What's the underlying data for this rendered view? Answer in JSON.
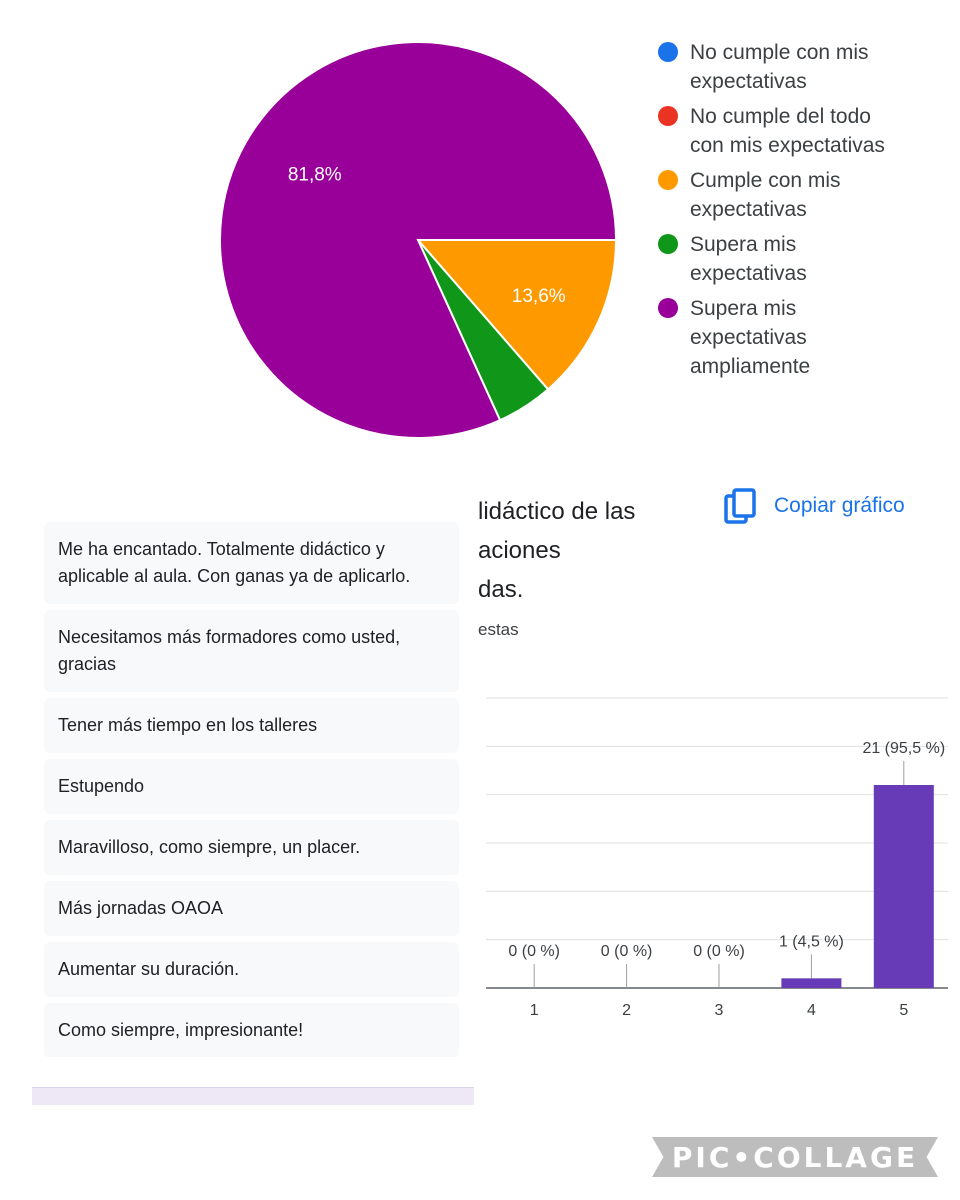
{
  "chart_data": [
    {
      "type": "pie",
      "title": "",
      "slices": [
        {
          "label": "No cumple con mis expectativas",
          "value": 0,
          "color": "#1a73e8"
        },
        {
          "label": "No cumple del todo con mis expectativas",
          "value": 0,
          "color": "#ea3323"
        },
        {
          "label": "Cumple con mis expectativas",
          "value": 13.6,
          "color": "#ff9900",
          "data_label": "13,6%"
        },
        {
          "label": "Supera mis expectativas",
          "value": 4.6,
          "color": "#109618"
        },
        {
          "label": "Supera mis expectativas ampliamente",
          "value": 81.8,
          "color": "#990099",
          "data_label": "81,8%"
        }
      ],
      "legend_position": "right"
    },
    {
      "type": "bar",
      "title": "",
      "categories": [
        "1",
        "2",
        "3",
        "4",
        "5"
      ],
      "values": [
        0,
        0,
        0,
        1,
        21
      ],
      "data_labels": [
        "0 (0 %)",
        "0 (0 %)",
        "0 (0 %)",
        "1 (4,5 %)",
        "21 (95,5 %)"
      ],
      "ylim": [
        0,
        30
      ],
      "grid": true,
      "bar_color": "#673ab7"
    }
  ],
  "question": {
    "title_lines": [
      "lidáctico de las",
      "aciones",
      "das."
    ],
    "responses_text": "estas"
  },
  "copy_chart": {
    "label": "Copiar gráfico",
    "icon": "copy-icon",
    "color": "#1a73e8"
  },
  "comments": [
    "Me ha encantado. Totalmente didáctico y aplicable al aula. Con ganas ya de aplicarlo.",
    "Necesitamos más formadores como usted, gracias",
    "Tener más tiempo en los talleres",
    "Estupendo",
    "Maravilloso, como siempre, un placer.",
    "Más jornadas OAOA",
    "Aumentar su duración.",
    "Como siempre, impresionante!"
  ],
  "watermark": "PIC•COLLAGE"
}
